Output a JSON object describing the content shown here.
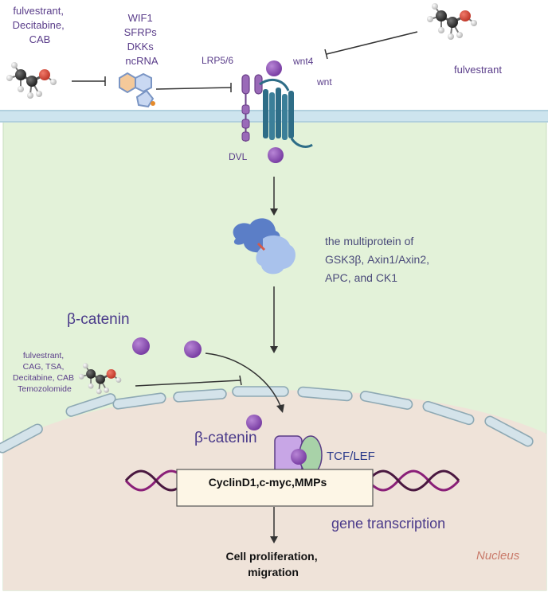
{
  "inhibitor_top_left": {
    "lines": [
      "fulvestrant,",
      "Decitabine,",
      "CAB"
    ]
  },
  "antagonists": {
    "lines": [
      "WIF1",
      "SFRPs",
      "DKKs",
      "ncRNA"
    ]
  },
  "inhibitor_top_right": {
    "label": "fulvestrant"
  },
  "receptor": {
    "lrp_label": "LRP5/6",
    "dvl_label": "DVL"
  },
  "ligand": {
    "wnt4_label": "wnt4",
    "wnt_label": "wnt"
  },
  "destruction_complex": {
    "lines": [
      "the multiprotein of",
      "GSK3β, Axin1/Axin2,",
      "APC, and CK1"
    ]
  },
  "beta_catenin": {
    "cyto_label": "β-catenin",
    "nuclear_label": "β-catenin"
  },
  "inhibitor_mid_left": {
    "lines": [
      "fulvestrant,",
      "CAG, TSA,",
      "Decitabine, CAB",
      "Temozolomide"
    ]
  },
  "tcf": {
    "label": "TCF/LEF"
  },
  "target_genes": {
    "label": "CyclinD1,c-myc,MMPs"
  },
  "transcription": {
    "label": "gene transcription"
  },
  "outcome": {
    "lines": [
      "Cell proliferation,",
      "migration"
    ]
  },
  "nucleus": {
    "label": "Nucleus"
  },
  "colors": {
    "cytoplasm": "#e3f2d9",
    "nucleus": "#efe3d9",
    "membrane": "#cde4ee",
    "receptor": "#2e6d87",
    "protein_purple": "#9a5bbd",
    "complex_blue": "#5b7ec7",
    "dna": "#8a1f78",
    "text": "#5a3d8a"
  }
}
